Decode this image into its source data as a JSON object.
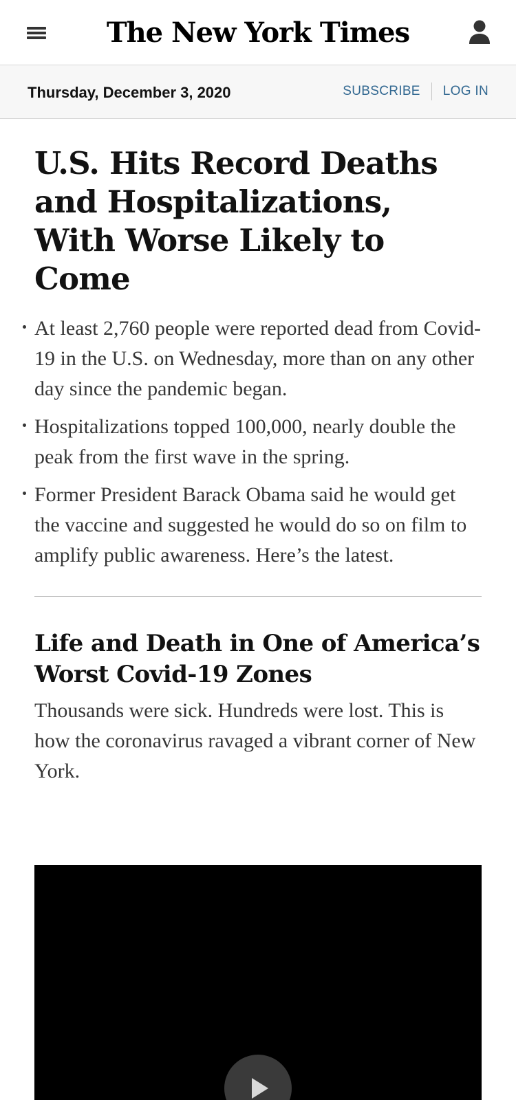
{
  "header": {
    "menu_icon": "hamburger-menu-icon",
    "logo_text": "The New York Times",
    "account_icon": "user-account-icon"
  },
  "datebar": {
    "date": "Thursday, December 3, 2020",
    "subscribe_label": "SUBSCRIBE",
    "login_label": "LOG IN",
    "link_color": "#326891"
  },
  "lead_story": {
    "headline": "U.S. Hits Record Deaths and Hospitalizations, With Worse Likely to Come",
    "bullets": [
      "At least 2,760 people were reported dead from Covid-19 in the U.S. on Wednesday, more than on any other day since the pandemic began.",
      "Hospitalizations topped 100,000, nearly double the peak from the first wave in the spring.",
      "Former President Barack Obama said he would get the vaccine and suggested he would do so on film to amplify public awareness. Here’s the latest."
    ]
  },
  "second_story": {
    "headline": "Life and Death in One of America’s Worst Covid-19 Zones",
    "summary": "Thousands were sick. Hundreds were lost. This is how the coronavirus ravaged a vibrant corner of New York.",
    "media": {
      "play_icon": "play-icon"
    }
  }
}
